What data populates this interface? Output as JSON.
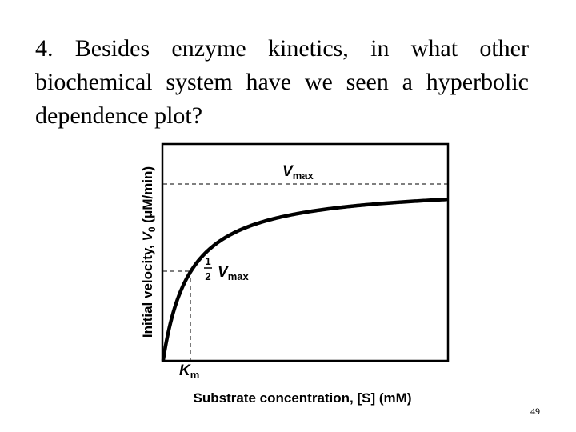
{
  "slide": {
    "question": "4. Besides enzyme kinetics, in what other biochemical system have we seen a hyperbolic dependence plot?",
    "page_number": "49"
  },
  "figure": {
    "y_axis_label_main": "Initial velocity, ",
    "y_axis_label_var": "V",
    "y_axis_label_sub": "0",
    "y_axis_label_units": " (μM/min)",
    "x_axis_label": "Substrate concentration, [S] (mM)",
    "vmax_label_main": "V",
    "vmax_label_sub": "max",
    "half_vmax_num": "1",
    "half_vmax_den": "2",
    "half_vmax_label_main": "V",
    "half_vmax_label_sub": "max",
    "km_label_main": "K",
    "km_label_sub": "m",
    "curve_color": "#000000",
    "dash_color": "#333333"
  }
}
